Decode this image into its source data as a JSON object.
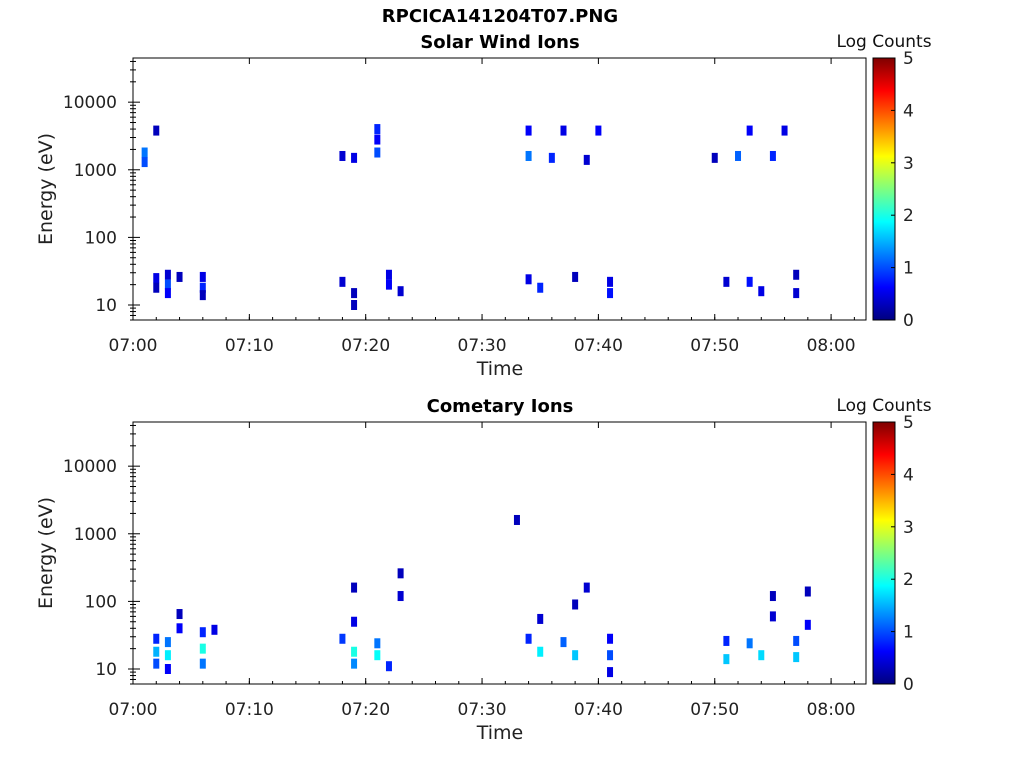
{
  "figure_title": "RPCICA141204T07.PNG",
  "colormap": [
    "#00007f",
    "#0000ff",
    "#007fff",
    "#00ffff",
    "#7fff7f",
    "#ffff00",
    "#ff7f00",
    "#ff0000",
    "#7f0000"
  ],
  "chart_data": [
    {
      "type": "heatmap",
      "title": "Solar Wind Ions",
      "xlabel": "Time",
      "ylabel": "Energy (eV)",
      "x_range": [
        "07:00",
        "08:03"
      ],
      "x_ticks": [
        "07:00",
        "07:10",
        "07:20",
        "07:30",
        "07:40",
        "07:50",
        "08:00"
      ],
      "y_scale": "log",
      "y_range": [
        6,
        45000
      ],
      "y_ticks": [
        "10",
        "100",
        "1000",
        "10000"
      ],
      "colorbar_label": "Log Counts",
      "colorbar_ticks": [
        "0",
        "1",
        "2",
        "3",
        "4",
        "5"
      ],
      "colorbar_range": [
        0,
        5
      ],
      "cells": [
        {
          "t": "07:01",
          "e": 1800,
          "v": 1.2
        },
        {
          "t": "07:01",
          "e": 1300,
          "v": 1.0
        },
        {
          "t": "07:02",
          "e": 3800,
          "v": 0.3
        },
        {
          "t": "07:02",
          "e": 25,
          "v": 0.5
        },
        {
          "t": "07:02",
          "e": 18,
          "v": 0.3
        },
        {
          "t": "07:03",
          "e": 28,
          "v": 0.4
        },
        {
          "t": "07:03",
          "e": 20,
          "v": 1.0
        },
        {
          "t": "07:03",
          "e": 15,
          "v": 0.6
        },
        {
          "t": "07:04",
          "e": 26,
          "v": 0.3
        },
        {
          "t": "07:06",
          "e": 26,
          "v": 0.5
        },
        {
          "t": "07:06",
          "e": 18,
          "v": 0.8
        },
        {
          "t": "07:06",
          "e": 14,
          "v": 0.3
        },
        {
          "t": "07:18",
          "e": 1600,
          "v": 0.4
        },
        {
          "t": "07:19",
          "e": 1500,
          "v": 0.5
        },
        {
          "t": "07:18",
          "e": 22,
          "v": 0.4
        },
        {
          "t": "07:19",
          "e": 15,
          "v": 0.3
        },
        {
          "t": "07:19",
          "e": 10,
          "v": 0.3
        },
        {
          "t": "07:21",
          "e": 1800,
          "v": 1.0
        },
        {
          "t": "07:21",
          "e": 4000,
          "v": 0.8
        },
        {
          "t": "07:21",
          "e": 2800,
          "v": 0.6
        },
        {
          "t": "07:22",
          "e": 28,
          "v": 0.5
        },
        {
          "t": "07:22",
          "e": 20,
          "v": 0.6
        },
        {
          "t": "07:23",
          "e": 16,
          "v": 0.4
        },
        {
          "t": "07:34",
          "e": 1600,
          "v": 1.2
        },
        {
          "t": "07:34",
          "e": 3800,
          "v": 0.6
        },
        {
          "t": "07:34",
          "e": 24,
          "v": 0.5
        },
        {
          "t": "07:35",
          "e": 18,
          "v": 0.8
        },
        {
          "t": "07:36",
          "e": 1500,
          "v": 0.8
        },
        {
          "t": "07:37",
          "e": 3800,
          "v": 0.5
        },
        {
          "t": "07:38",
          "e": 26,
          "v": 0.3
        },
        {
          "t": "07:39",
          "e": 1400,
          "v": 0.4
        },
        {
          "t": "07:40",
          "e": 3800,
          "v": 0.6
        },
        {
          "t": "07:41",
          "e": 22,
          "v": 0.5
        },
        {
          "t": "07:41",
          "e": 15,
          "v": 0.7
        },
        {
          "t": "07:50",
          "e": 1500,
          "v": 0.3
        },
        {
          "t": "07:51",
          "e": 22,
          "v": 0.4
        },
        {
          "t": "07:52",
          "e": 1600,
          "v": 1.1
        },
        {
          "t": "07:53",
          "e": 3800,
          "v": 0.6
        },
        {
          "t": "07:53",
          "e": 22,
          "v": 0.7
        },
        {
          "t": "07:54",
          "e": 16,
          "v": 0.5
        },
        {
          "t": "07:55",
          "e": 1600,
          "v": 0.8
        },
        {
          "t": "07:56",
          "e": 3800,
          "v": 0.5
        },
        {
          "t": "07:57",
          "e": 28,
          "v": 0.3
        },
        {
          "t": "07:57",
          "e": 15,
          "v": 0.4
        }
      ]
    },
    {
      "type": "heatmap",
      "title": "Cometary Ions",
      "xlabel": "Time",
      "ylabel": "Energy (eV)",
      "x_range": [
        "07:00",
        "08:03"
      ],
      "x_ticks": [
        "07:00",
        "07:10",
        "07:20",
        "07:30",
        "07:40",
        "07:50",
        "08:00"
      ],
      "y_scale": "log",
      "y_range": [
        6,
        45000
      ],
      "y_ticks": [
        "10",
        "100",
        "1000",
        "10000"
      ],
      "colorbar_label": "Log Counts",
      "colorbar_ticks": [
        "0",
        "1",
        "2",
        "3",
        "4",
        "5"
      ],
      "colorbar_range": [
        0,
        5
      ],
      "cells": [
        {
          "t": "07:02",
          "e": 28,
          "v": 0.8
        },
        {
          "t": "07:02",
          "e": 18,
          "v": 1.5
        },
        {
          "t": "07:02",
          "e": 12,
          "v": 1.0
        },
        {
          "t": "07:03",
          "e": 25,
          "v": 1.2
        },
        {
          "t": "07:03",
          "e": 16,
          "v": 1.8
        },
        {
          "t": "07:03",
          "e": 10,
          "v": 0.6
        },
        {
          "t": "07:04",
          "e": 40,
          "v": 0.6
        },
        {
          "t": "07:04",
          "e": 65,
          "v": 0.3
        },
        {
          "t": "07:06",
          "e": 35,
          "v": 0.8
        },
        {
          "t": "07:06",
          "e": 20,
          "v": 2.0
        },
        {
          "t": "07:06",
          "e": 12,
          "v": 1.2
        },
        {
          "t": "07:07",
          "e": 38,
          "v": 0.5
        },
        {
          "t": "07:18",
          "e": 28,
          "v": 0.9
        },
        {
          "t": "07:19",
          "e": 18,
          "v": 2.0
        },
        {
          "t": "07:19",
          "e": 12,
          "v": 1.3
        },
        {
          "t": "07:19",
          "e": 160,
          "v": 0.3
        },
        {
          "t": "07:19",
          "e": 50,
          "v": 0.5
        },
        {
          "t": "07:21",
          "e": 24,
          "v": 1.2
        },
        {
          "t": "07:21",
          "e": 16,
          "v": 1.9
        },
        {
          "t": "07:22",
          "e": 11,
          "v": 0.8
        },
        {
          "t": "07:23",
          "e": 120,
          "v": 0.4
        },
        {
          "t": "07:23",
          "e": 260,
          "v": 0.3
        },
        {
          "t": "07:33",
          "e": 1600,
          "v": 0.3
        },
        {
          "t": "07:34",
          "e": 28,
          "v": 0.8
        },
        {
          "t": "07:35",
          "e": 18,
          "v": 1.8
        },
        {
          "t": "07:35",
          "e": 55,
          "v": 0.4
        },
        {
          "t": "07:37",
          "e": 25,
          "v": 1.1
        },
        {
          "t": "07:38",
          "e": 16,
          "v": 1.6
        },
        {
          "t": "07:38",
          "e": 90,
          "v": 0.3
        },
        {
          "t": "07:39",
          "e": 160,
          "v": 0.4
        },
        {
          "t": "07:41",
          "e": 28,
          "v": 0.6
        },
        {
          "t": "07:41",
          "e": 16,
          "v": 1.0
        },
        {
          "t": "07:41",
          "e": 9,
          "v": 0.5
        },
        {
          "t": "07:51",
          "e": 26,
          "v": 0.8
        },
        {
          "t": "07:51",
          "e": 14,
          "v": 1.6
        },
        {
          "t": "07:53",
          "e": 24,
          "v": 1.2
        },
        {
          "t": "07:54",
          "e": 16,
          "v": 1.7
        },
        {
          "t": "07:55",
          "e": 120,
          "v": 0.3
        },
        {
          "t": "07:55",
          "e": 60,
          "v": 0.4
        },
        {
          "t": "07:57",
          "e": 26,
          "v": 1.0
        },
        {
          "t": "07:57",
          "e": 15,
          "v": 1.6
        },
        {
          "t": "07:58",
          "e": 140,
          "v": 0.3
        },
        {
          "t": "07:58",
          "e": 45,
          "v": 0.6
        }
      ]
    }
  ]
}
